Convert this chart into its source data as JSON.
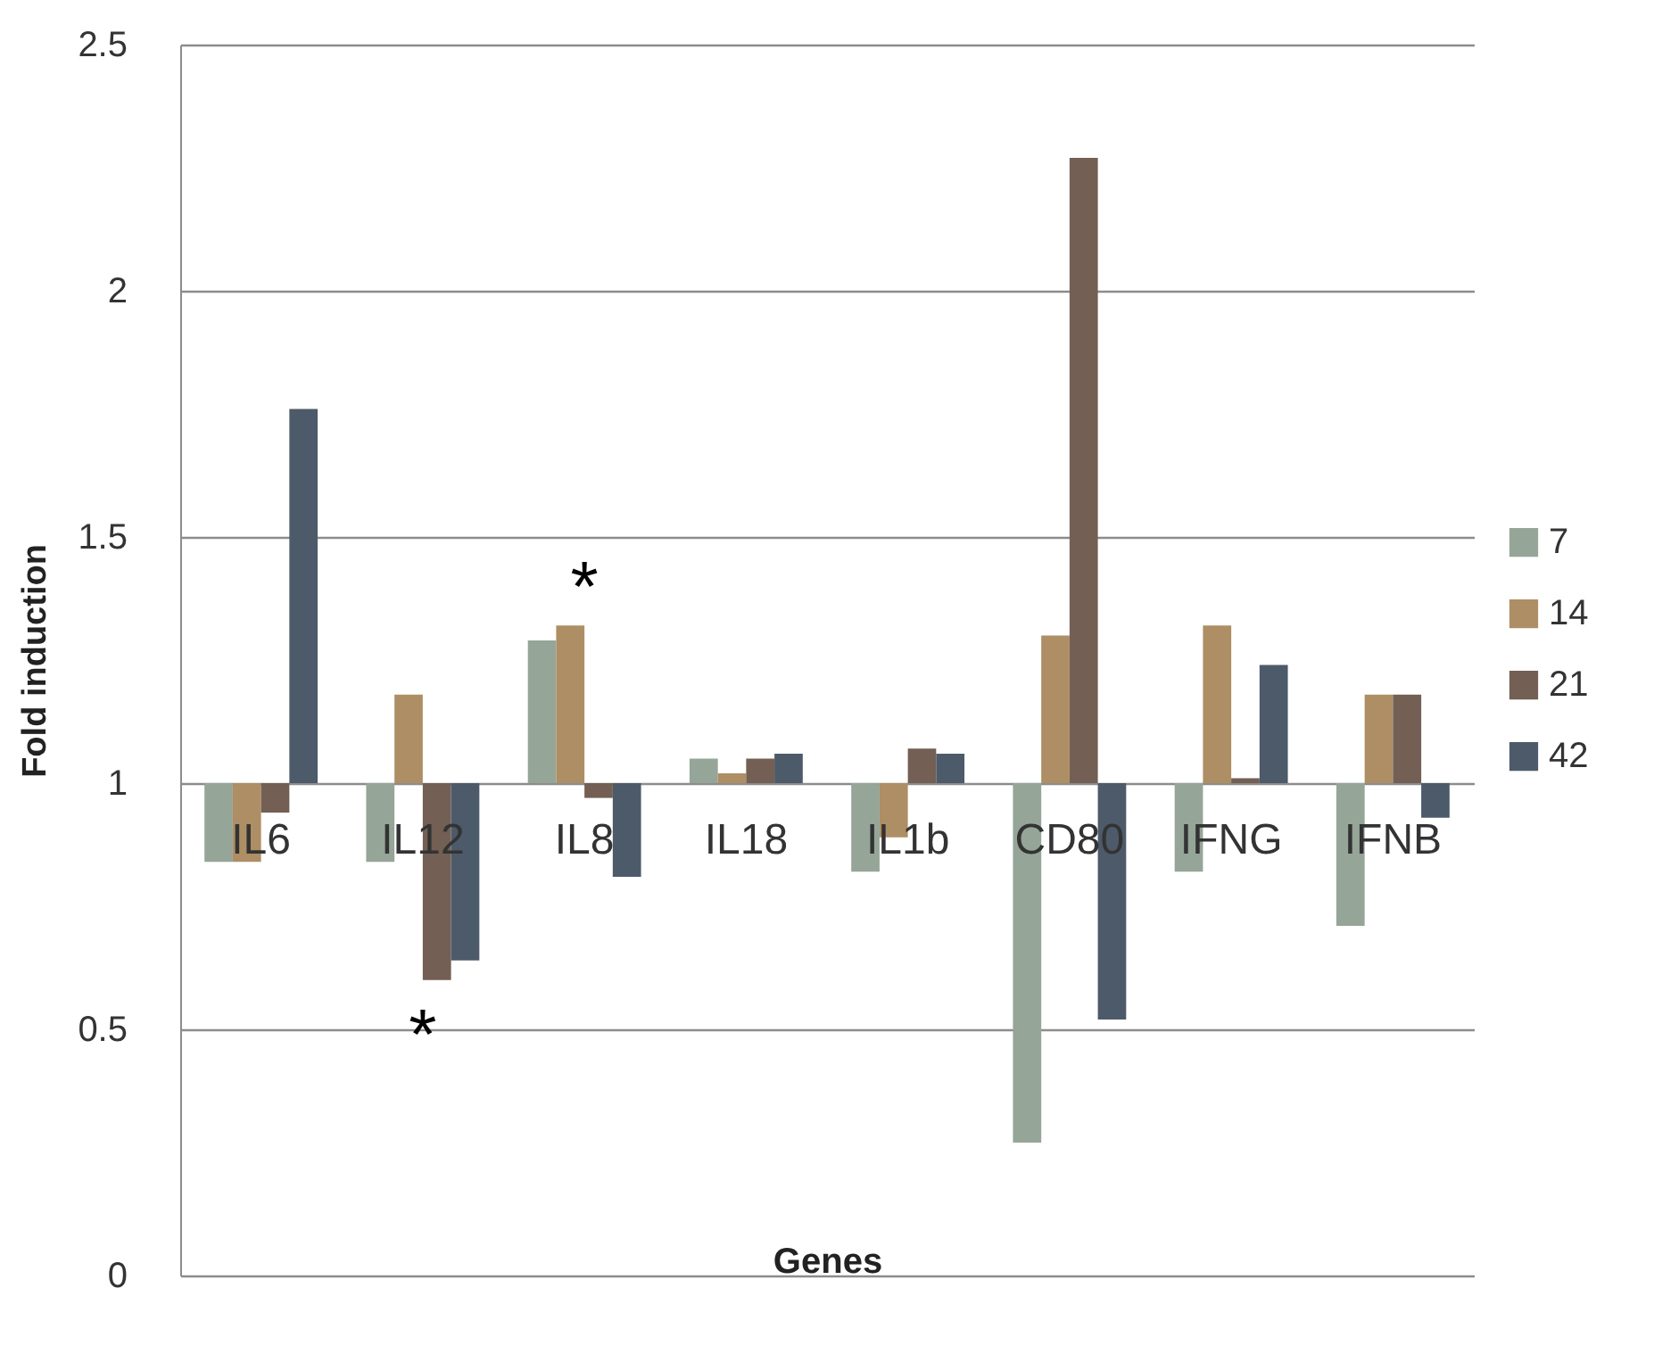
{
  "chart_data": {
    "type": "bar",
    "xlabel": "Genes",
    "ylabel": "Fold induction",
    "categories": [
      "IL6",
      "IL12",
      "IL8",
      "IL18",
      "IL1b",
      "CD80",
      "IFNG",
      "IFNB"
    ],
    "series": [
      {
        "name": "7",
        "color": "#95a598",
        "base": [
          1,
          1,
          1,
          1,
          1,
          1,
          1,
          1
        ],
        "values": [
          -0.16,
          -0.16,
          0.29,
          0.05,
          -0.18,
          -0.73,
          -0.18,
          -0.29
        ]
      },
      {
        "name": "14",
        "color": "#ae8e64",
        "base": [
          1,
          1,
          1,
          1,
          1,
          1,
          1,
          1
        ],
        "values": [
          -0.16,
          0.18,
          0.32,
          0.02,
          -0.11,
          0.3,
          0.32,
          0.18
        ]
      },
      {
        "name": "21",
        "color": "#735f53",
        "base": [
          1,
          1,
          1,
          1,
          1,
          1,
          1,
          1
        ],
        "values": [
          -0.06,
          -0.4,
          -0.03,
          0.05,
          0.07,
          1.27,
          0.01,
          0.18
        ]
      },
      {
        "name": "42",
        "color": "#4d5a6a",
        "base": [
          1,
          1,
          1,
          1,
          1,
          1,
          1,
          1
        ],
        "values": [
          0.76,
          -0.36,
          -0.19,
          0.06,
          0.06,
          -0.48,
          0.24,
          -0.07
        ]
      }
    ],
    "ylim": [
      0,
      2.5
    ],
    "yticks": [
      0,
      0.5,
      1,
      1.5,
      2,
      2.5
    ],
    "grid": "y",
    "legend": "right",
    "annotations": [
      {
        "text": "*",
        "x": "IL8",
        "y": 1.32
      },
      {
        "text": "*",
        "x": "IL12",
        "y": 0.6
      }
    ]
  }
}
